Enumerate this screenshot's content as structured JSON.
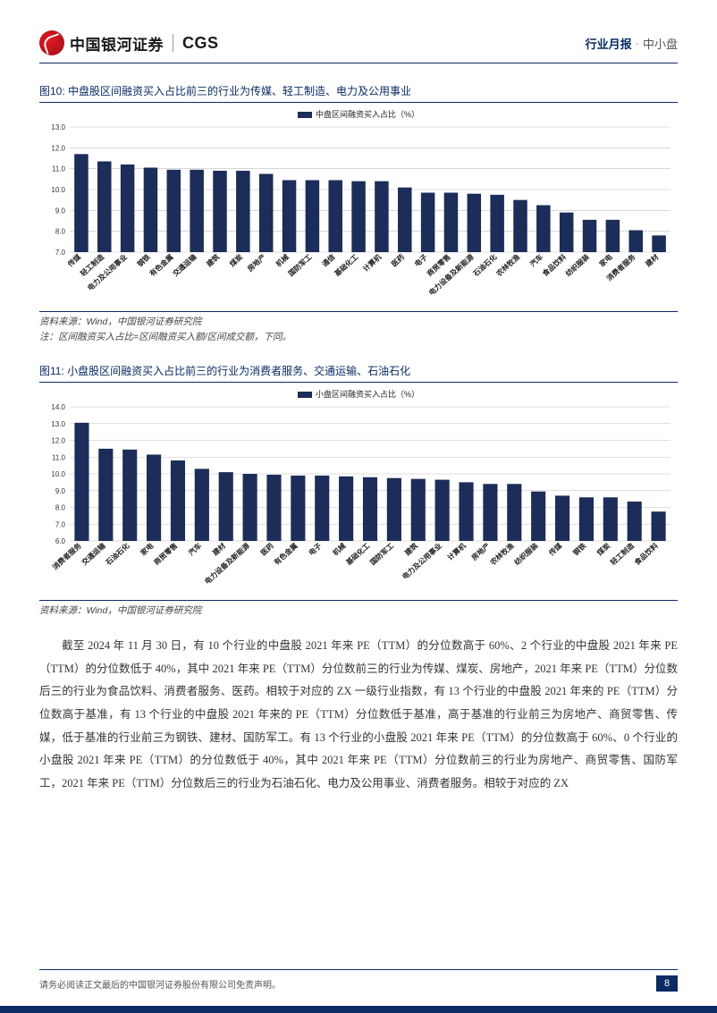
{
  "header": {
    "logo_cn": "中国银河证券",
    "logo_en": "CGS",
    "report_type": "行业月报",
    "dot": "·",
    "category": "中小盘"
  },
  "figure10": {
    "title": "图10: 中盘股区间融资买入占比前三的行业为传媒、轻工制造、电力及公用事业",
    "legend": "中盘区间融资买入占比（%）",
    "type": "bar",
    "categories": [
      "传媒",
      "轻工制造",
      "电力及公用事业",
      "钢铁",
      "有色金属",
      "交通运输",
      "建筑",
      "煤炭",
      "房地产",
      "机械",
      "国防军工",
      "通信",
      "基础化工",
      "计算机",
      "医药",
      "电子",
      "商贸零售",
      "电力设备及新能源",
      "石油石化",
      "农林牧渔",
      "汽车",
      "食品饮料",
      "纺织服装",
      "家电",
      "消费者服务",
      "建材"
    ],
    "values": [
      11.7,
      11.35,
      11.2,
      11.05,
      10.95,
      10.95,
      10.9,
      10.9,
      10.75,
      10.45,
      10.45,
      10.45,
      10.4,
      10.4,
      10.1,
      9.85,
      9.85,
      9.8,
      9.75,
      9.5,
      9.25,
      8.9,
      8.55,
      8.55,
      8.05,
      7.8
    ],
    "ylim": [
      7.0,
      13.0
    ],
    "ytick_step": 1.0,
    "bar_color": "#1b2d58",
    "grid_color": "#bfbfbf",
    "axis_color": "#666666",
    "label_fontsize": 8,
    "tick_fontsize": 8,
    "background_color": "#ffffff",
    "bar_width": 0.6,
    "source": "资料来源：Wind，中国银河证券研究院",
    "note": "注：区间融资买入占比=区间融资买入额/区间成交额，下同。"
  },
  "figure11": {
    "title": "图11: 小盘股区间融资买入占比前三的行业为消费者服务、交通运输、石油石化",
    "legend": "小盘区间融资买入占比（%）",
    "type": "bar",
    "categories": [
      "消费者服务",
      "交通运输",
      "石油石化",
      "家电",
      "商贸零售",
      "汽车",
      "建材",
      "电力设备及新能源",
      "医药",
      "有色金属",
      "电子",
      "机械",
      "基础化工",
      "国防军工",
      "建筑",
      "电力及公用事业",
      "计算机",
      "房地产",
      "农林牧渔",
      "纺织服装",
      "传媒",
      "钢铁",
      "煤炭",
      "轻工制造",
      "食品饮料"
    ],
    "values": [
      13.05,
      11.5,
      11.45,
      11.15,
      10.8,
      10.3,
      10.1,
      10.0,
      9.95,
      9.9,
      9.9,
      9.85,
      9.8,
      9.75,
      9.7,
      9.65,
      9.5,
      9.4,
      9.4,
      8.95,
      8.7,
      8.6,
      8.6,
      8.35,
      7.75
    ],
    "ylim": [
      6.0,
      14.0
    ],
    "ytick_step": 1.0,
    "bar_color": "#1b2d58",
    "grid_color": "#bfbfbf",
    "axis_color": "#666666",
    "label_fontsize": 8,
    "tick_fontsize": 8,
    "background_color": "#ffffff",
    "bar_width": 0.6,
    "source": "资料来源：Wind，中国银河证券研究院"
  },
  "body_text": "截至 2024 年 11 月 30 日，有 10 个行业的中盘股 2021 年来 PE（TTM）的分位数高于 60%、2 个行业的中盘股 2021 年来 PE（TTM）的分位数低于 40%，其中 2021 年来 PE（TTM）分位数前三的行业为传媒、煤炭、房地产，2021 年来 PE（TTM）分位数后三的行业为食品饮料、消费者服务、医药。相较于对应的 ZX 一级行业指数，有 13 个行业的中盘股 2021 年来的 PE（TTM）分位数高于基准，有 13 个行业的中盘股 2021 年来的 PE（TTM）分位数低于基准，高于基准的行业前三为房地产、商贸零售、传媒，低于基准的行业前三为钢铁、建材、国防军工。有 13 个行业的小盘股 2021 年来 PE（TTM）的分位数高于 60%、0 个行业的小盘股 2021 年来 PE（TTM）的分位数低于 40%，其中 2021 年来 PE（TTM）分位数前三的行业为房地产、商贸零售、国防军工，2021 年来 PE（TTM）分位数后三的行业为石油石化、电力及公用事业、消费者服务。相较于对应的 ZX",
  "footer": {
    "disclaimer": "请务必阅读正文最后的中国银河证券股份有限公司免责声明。",
    "page_number": "8"
  },
  "colors": {
    "brand_navy": "#0b2b63",
    "brand_red": "#e31b23"
  }
}
